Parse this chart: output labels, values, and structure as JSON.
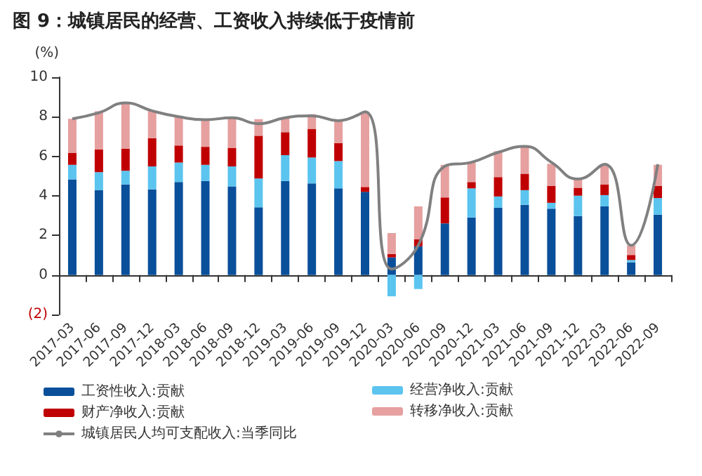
{
  "chart_data": {
    "type": "bar",
    "title": "图 9：城镇居民的经营、工资收入持续低于疫情前",
    "ylabel": "(%)",
    "categories": [
      "2017-03",
      "2017-06",
      "2017-09",
      "2017-12",
      "2018-03",
      "2018-06",
      "2018-09",
      "2018-12",
      "2019-03",
      "2019-06",
      "2019-09",
      "2019-12",
      "2020-03",
      "2020-06",
      "2020-09",
      "2020-12",
      "2021-03",
      "2021-06",
      "2021-09",
      "2021-12",
      "2022-03",
      "2022-06",
      "2022-09"
    ],
    "stacked": true,
    "ylim": [
      -2,
      10
    ],
    "yticks": [
      {
        "value": -2,
        "label": "(2)"
      },
      0,
      2,
      4,
      6,
      8,
      10
    ],
    "legend": "bottom",
    "marker": "none",
    "series": [
      {
        "name": "工资性收入:贡献",
        "color": "#0a4f9a",
        "values": [
          4.83,
          4.29,
          4.58,
          4.33,
          4.7,
          4.75,
          4.48,
          3.42,
          4.75,
          4.63,
          4.38,
          4.2,
          0.89,
          1.45,
          2.61,
          2.91,
          3.4,
          3.55,
          3.35,
          2.98,
          3.47,
          0.64,
          3.05
        ]
      },
      {
        "name": "经营净收入:贡献",
        "color": "#5bc4ef",
        "values": [
          0.74,
          0.91,
          0.69,
          1.16,
          0.99,
          0.82,
          1.01,
          1.46,
          1.31,
          1.31,
          1.38,
          0,
          -1.08,
          -0.71,
          0,
          1.47,
          0.57,
          0.74,
          0.3,
          1.03,
          0.57,
          0.12,
          0.84
        ]
      },
      {
        "name": "财产净收入:贡献",
        "color": "#c00000",
        "values": [
          0.61,
          1.15,
          1.11,
          1.43,
          0.86,
          0.91,
          0.94,
          2.16,
          1.16,
          1.45,
          0.91,
          0.25,
          0.17,
          0.35,
          1.31,
          0.32,
          0.98,
          0.83,
          0.86,
          0.4,
          0.54,
          0.25,
          0.62
        ]
      },
      {
        "name": "转移净收入:贡献",
        "color": "#e6a0a0",
        "values": [
          1.72,
          1.93,
          2.34,
          1.41,
          1.43,
          1.38,
          1.5,
          0.84,
          0.76,
          0.74,
          1.16,
          3.8,
          1.06,
          1.67,
          1.65,
          0.99,
          1.31,
          1.43,
          1.11,
          0.47,
          0.99,
          0.49,
          1.06
        ]
      },
      {
        "name": "城镇居民人均可支配收入:当季同比",
        "type": "line",
        "color": "#808080",
        "values": [
          7.9,
          8.2,
          8.7,
          8.3,
          8.0,
          7.85,
          7.95,
          7.65,
          7.95,
          8.05,
          7.8,
          8.25,
          0.3,
          1.5,
          5.5,
          5.7,
          6.2,
          6.5,
          5.7,
          4.85,
          5.6,
          1.5,
          5.6
        ]
      }
    ]
  }
}
